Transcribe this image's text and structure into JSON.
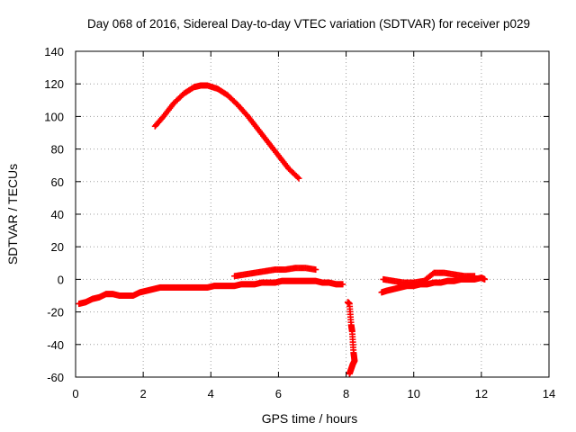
{
  "chart_data": {
    "type": "scatter",
    "title": "Day 068 of 2016, Sidereal Day-to-day VTEC variation (SDTVAR) for receiver p029",
    "xlabel": "GPS time / hours",
    "ylabel": "SDTVAR / TECUs",
    "xlim": [
      0,
      14
    ],
    "ylim": [
      -60,
      140
    ],
    "xticks": [
      0,
      2,
      4,
      6,
      8,
      10,
      12,
      14
    ],
    "yticks": [
      -60,
      -40,
      -20,
      0,
      20,
      40,
      60,
      80,
      100,
      120,
      140
    ],
    "grid": true,
    "marker": "plus",
    "color": "#ff0000",
    "series": [
      {
        "name": "arc-high",
        "x": [
          2.35,
          2.6,
          2.9,
          3.2,
          3.5,
          3.7,
          3.9,
          4.2,
          4.5,
          4.8,
          5.1,
          5.4,
          5.7,
          6.0,
          6.3,
          6.6
        ],
        "y": [
          94,
          100,
          108,
          114,
          118,
          119,
          119,
          117,
          113,
          107,
          100,
          92,
          84,
          76,
          68,
          62
        ]
      },
      {
        "name": "arc-early",
        "x": [
          0.1,
          0.3,
          0.5,
          0.7,
          0.9,
          1.1,
          1.3,
          1.5,
          1.7,
          1.9,
          2.1,
          2.3,
          2.5,
          2.7,
          2.9,
          3.1,
          3.3,
          3.5,
          3.7,
          3.9,
          4.1,
          4.3,
          4.5,
          4.7,
          4.9,
          5.1,
          5.3,
          5.5,
          5.7,
          5.9,
          6.1,
          6.3,
          6.5,
          6.7,
          6.9,
          7.1,
          7.3,
          7.5,
          7.7,
          7.9
        ],
        "y": [
          -15,
          -14,
          -12,
          -11,
          -9,
          -9,
          -10,
          -10,
          -10,
          -8,
          -7,
          -6,
          -5,
          -5,
          -5,
          -5,
          -5,
          -5,
          -5,
          -5,
          -4,
          -4,
          -4,
          -4,
          -3,
          -3,
          -3,
          -2,
          -2,
          -2,
          -1,
          -1,
          -1,
          -1,
          -1,
          -1,
          -2,
          -2,
          -3,
          -3
        ]
      },
      {
        "name": "arc-mid",
        "x": [
          4.7,
          5.0,
          5.3,
          5.6,
          5.9,
          6.2,
          6.5,
          6.8,
          7.1
        ],
        "y": [
          2,
          3,
          4,
          5,
          6,
          6,
          7,
          7,
          6
        ]
      },
      {
        "name": "arc-drop",
        "x": [
          8.05,
          8.1,
          8.15,
          8.18,
          8.22,
          8.25,
          8.2,
          8.15,
          8.1
        ],
        "y": [
          -14,
          -15,
          -28,
          -32,
          -45,
          -50,
          -52,
          -55,
          -58
        ]
      },
      {
        "name": "arc-late",
        "x": [
          9.05,
          9.2,
          9.4,
          9.6,
          9.8,
          10.0,
          10.2,
          10.4,
          10.6,
          10.8,
          11.0,
          11.2,
          11.4,
          11.6,
          11.8,
          12.0,
          12.1
        ],
        "y": [
          -8,
          -7,
          -6,
          -5,
          -4,
          -4,
          -3,
          -3,
          -2,
          -2,
          -1,
          -1,
          0,
          0,
          0,
          1,
          0
        ]
      },
      {
        "name": "arc-late-upper",
        "x": [
          9.1,
          9.4,
          9.7,
          10.0,
          10.3,
          10.6,
          10.9,
          11.2,
          11.5,
          11.8
        ],
        "y": [
          0,
          -1,
          -2,
          -2,
          -1,
          4,
          4,
          3,
          2,
          2
        ]
      }
    ]
  }
}
